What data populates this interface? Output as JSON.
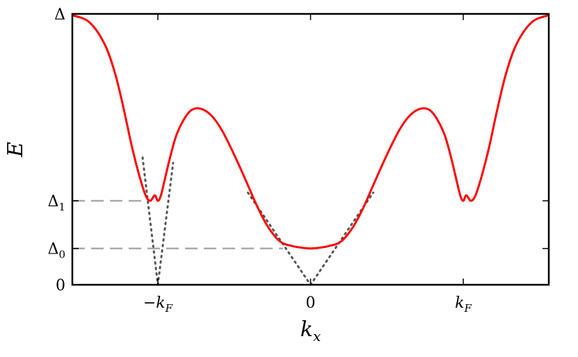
{
  "chart_data": {
    "type": "line",
    "title": "",
    "xlabel": "k_x",
    "ylabel": "E",
    "grid": false,
    "legend": "none",
    "xlim": [
      -1.56,
      1.56
    ],
    "ylim": [
      0,
      1
    ],
    "xticks": [
      {
        "value": -1,
        "label": "−k",
        "sub": "F"
      },
      {
        "value": 0,
        "label": "0",
        "sub": ""
      },
      {
        "value": 1,
        "label": "k",
        "sub": "F"
      }
    ],
    "yticks": [
      {
        "value": 0,
        "label": "0",
        "sub": ""
      },
      {
        "value": 0.134,
        "label": "Δ",
        "sub": "0"
      },
      {
        "value": 0.31,
        "label": "Δ",
        "sub": "1"
      },
      {
        "value": 1,
        "label": "Δ",
        "sub": ""
      }
    ],
    "series": [
      {
        "style": "solid",
        "color": "#ff0000",
        "x": [
          -1.56,
          -1.45,
          -1.35,
          -1.28,
          -1.22,
          -1.17,
          -1.12,
          -1.08,
          -1.05,
          -1.02,
          -1.0,
          -0.98,
          -0.95,
          -0.92,
          -0.88,
          -0.83,
          -0.78,
          -0.72,
          -0.65,
          -0.58,
          -0.5,
          -0.42,
          -0.35,
          -0.28,
          -0.2,
          -0.12,
          -0.06,
          0.0,
          0.06,
          0.12,
          0.2,
          0.28,
          0.35,
          0.42,
          0.5,
          0.58,
          0.65,
          0.72,
          0.78,
          0.83,
          0.88,
          0.92,
          0.95,
          0.98,
          1.0,
          1.02,
          1.05,
          1.08,
          1.12,
          1.17,
          1.22,
          1.28,
          1.35,
          1.45,
          1.56
        ],
        "y": [
          0.995,
          0.97,
          0.89,
          0.78,
          0.64,
          0.51,
          0.4,
          0.33,
          0.31,
          0.33,
          0.31,
          0.33,
          0.4,
          0.47,
          0.55,
          0.61,
          0.645,
          0.65,
          0.625,
          0.57,
          0.48,
          0.38,
          0.29,
          0.215,
          0.16,
          0.143,
          0.137,
          0.134,
          0.137,
          0.143,
          0.16,
          0.215,
          0.29,
          0.38,
          0.48,
          0.57,
          0.625,
          0.65,
          0.645,
          0.61,
          0.55,
          0.47,
          0.4,
          0.33,
          0.31,
          0.33,
          0.31,
          0.33,
          0.4,
          0.51,
          0.64,
          0.78,
          0.89,
          0.97,
          0.995
        ]
      },
      {
        "style": "dotted",
        "color": "#555555",
        "segments": [
          [
            [
              -1.1,
              0.47
            ],
            [
              -1.0,
              0.0
            ]
          ],
          [
            [
              -1.0,
              0.0
            ],
            [
              -0.9,
              0.45
            ]
          ],
          [
            [
              -0.41,
              0.34
            ],
            [
              0.0,
              0.0
            ]
          ],
          [
            [
              0.0,
              0.0
            ],
            [
              0.41,
              0.34
            ]
          ]
        ]
      },
      {
        "style": "dashed",
        "color": "#aaaaaa",
        "segments": [
          [
            [
              -1.56,
              0.31
            ],
            [
              -1.1,
              0.31
            ]
          ],
          [
            [
              -1.56,
              0.134
            ],
            [
              -0.18,
              0.134
            ]
          ]
        ]
      }
    ]
  }
}
